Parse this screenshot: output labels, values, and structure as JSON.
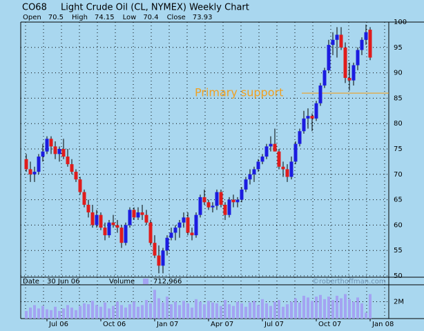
{
  "chart_data": {
    "type": "candlestick",
    "symbol": "CO68",
    "title": "Light Crude Oil (CL, NYMEX) Weekly Chart",
    "quote": [
      {
        "label": "Open",
        "value": 70.5
      },
      {
        "label": "High",
        "value": 74.15
      },
      {
        "label": "Low",
        "value": 70.4
      },
      {
        "label": "Close",
        "value": 73.93
      }
    ],
    "date_label": "Date",
    "date": "30 Jun 06",
    "volume_label": "Volume",
    "volume_value": {
      "value": 712966,
      "label": "712,966"
    },
    "watermark": "©roberthoffman.com",
    "up_color": "#1c1ce0",
    "down_color": "#e01c1c",
    "volume_color": "#a3a3f2",
    "grid": true,
    "categories": [
      null,
      null,
      null,
      null,
      null,
      "Jul 06",
      null,
      null,
      null,
      null,
      null,
      null,
      null,
      null,
      null,
      null,
      null,
      null,
      "Oct 06",
      null,
      null,
      null,
      null,
      null,
      null,
      null,
      null,
      null,
      null,
      null,
      null,
      "Jan 07",
      null,
      null,
      null,
      null,
      null,
      null,
      null,
      null,
      null,
      null,
      null,
      null,
      "Apr 07",
      null,
      null,
      null,
      null,
      null,
      null,
      null,
      null,
      null,
      null,
      null,
      null,
      "Jul 07",
      null,
      null,
      null,
      null,
      null,
      null,
      null,
      null,
      null,
      null,
      null,
      null,
      "Oct 07",
      null,
      null,
      null,
      null,
      null,
      null,
      null,
      null,
      null,
      null,
      null,
      null,
      "Jan 08"
    ],
    "ohlc": [
      [
        73,
        74,
        70.5,
        71
      ],
      [
        71,
        72.5,
        68.5,
        70
      ],
      [
        70,
        71.5,
        68.5,
        70.5
      ],
      [
        70.5,
        74,
        70,
        73.5
      ],
      [
        73.5,
        76,
        72.5,
        74.5
      ],
      [
        74.5,
        77.5,
        74,
        77
      ],
      [
        77,
        77.5,
        74,
        75.5
      ],
      [
        75.5,
        76.5,
        73,
        74
      ],
      [
        74,
        75.5,
        72.5,
        75
      ],
      [
        75,
        77,
        73,
        73.5
      ],
      [
        73.5,
        75,
        71.5,
        72
      ],
      [
        72,
        73,
        70,
        70.5
      ],
      [
        70.5,
        71,
        68.5,
        69
      ],
      [
        69,
        69.5,
        66,
        66.5
      ],
      [
        66.5,
        67,
        63.5,
        64
      ],
      [
        64,
        65,
        61.5,
        62.5
      ],
      [
        62.5,
        64,
        59.5,
        60
      ],
      [
        60,
        63,
        59.5,
        62
      ],
      [
        62,
        62.5,
        59,
        59.5
      ],
      [
        59.5,
        60.5,
        57,
        58
      ],
      [
        58,
        61,
        57.5,
        60.5
      ],
      [
        60.5,
        62,
        59.5,
        60
      ],
      [
        60,
        61,
        58.5,
        59.5
      ],
      [
        59.5,
        60,
        55.5,
        56.5
      ],
      [
        56.5,
        60.5,
        56,
        60
      ],
      [
        60,
        63.5,
        59.5,
        63
      ],
      [
        63,
        63.5,
        61,
        61.5
      ],
      [
        61.5,
        63.5,
        61,
        62.5
      ],
      [
        62.5,
        64,
        61,
        62
      ],
      [
        62,
        63,
        60,
        60.5
      ],
      [
        60.5,
        61,
        56,
        56.5
      ],
      [
        56.5,
        58,
        53.5,
        54
      ],
      [
        54,
        56,
        50.5,
        52
      ],
      [
        52,
        55.5,
        50.5,
        55
      ],
      [
        55,
        58,
        54,
        57.5
      ],
      [
        57.5,
        59.5,
        57,
        58.5
      ],
      [
        58.5,
        60,
        57,
        59.5
      ],
      [
        59.5,
        61,
        57.5,
        60.5
      ],
      [
        60.5,
        62.5,
        59.5,
        61.5
      ],
      [
        61.5,
        62.5,
        58,
        58.5
      ],
      [
        58.5,
        59.5,
        57,
        58
      ],
      [
        58,
        62.5,
        57.5,
        62
      ],
      [
        62,
        66,
        61.5,
        65.5
      ],
      [
        65.5,
        67,
        64,
        64.5
      ],
      [
        64.5,
        65,
        63,
        63.5
      ],
      [
        63.5,
        64.5,
        62.5,
        63.8
      ],
      [
        63.8,
        67,
        63,
        66.5
      ],
      [
        66.5,
        67,
        63.5,
        64
      ],
      [
        64,
        64.5,
        61,
        62
      ],
      [
        62,
        65.5,
        61.5,
        65
      ],
      [
        65,
        66,
        63.5,
        64.5
      ],
      [
        64.5,
        65.5,
        63.5,
        65
      ],
      [
        65,
        67.5,
        64.5,
        67
      ],
      [
        67,
        69.5,
        66.5,
        69
      ],
      [
        69,
        71,
        68,
        70
      ],
      [
        70,
        71.5,
        68.5,
        71
      ],
      [
        71,
        73,
        70.5,
        72.5
      ],
      [
        72.5,
        74,
        72,
        73.5
      ],
      [
        73.5,
        76,
        73,
        75.5
      ],
      [
        75.5,
        77.5,
        74.5,
        76
      ],
      [
        76,
        79,
        74.5,
        74.5
      ],
      [
        74.5,
        75,
        71,
        71.5
      ],
      [
        71.5,
        72.5,
        69.5,
        71
      ],
      [
        71,
        72,
        68.5,
        69.5
      ],
      [
        69.5,
        73.5,
        69,
        72.5
      ],
      [
        72.5,
        76.5,
        72,
        76
      ],
      [
        76,
        79,
        75.5,
        78.5
      ],
      [
        78.5,
        82.5,
        78,
        81
      ],
      [
        81,
        83,
        79,
        81.5
      ],
      [
        81.5,
        82,
        78.5,
        81
      ],
      [
        81,
        84.5,
        80.5,
        84
      ],
      [
        84,
        88,
        83.5,
        87.5
      ],
      [
        87.5,
        91,
        87,
        90.5
      ],
      [
        90.5,
        96.5,
        90,
        95.5
      ],
      [
        95.5,
        98,
        93.5,
        96.5
      ],
      [
        96.5,
        99,
        93,
        97.5
      ],
      [
        97.5,
        99,
        94.5,
        95
      ],
      [
        95,
        96,
        88,
        89
      ],
      [
        89,
        92,
        86.5,
        88.5
      ],
      [
        88.5,
        92,
        87.5,
        91.5
      ],
      [
        91.5,
        95,
        90.5,
        94.5
      ],
      [
        94.5,
        97,
        93.5,
        96.5
      ],
      [
        96.5,
        99.5,
        95.5,
        98
      ],
      [
        98.5,
        99,
        92.5,
        93
      ]
    ],
    "volume": [
      900000,
      1300000,
      1600000,
      1200000,
      1500000,
      1100000,
      1000000,
      1400000,
      900000,
      1200000,
      1600000,
      1300000,
      1000000,
      1500000,
      1800000,
      1700000,
      2100000,
      1600000,
      1400000,
      1900000,
      1200000,
      1500000,
      2000000,
      1600000,
      1300000,
      1700000,
      2000000,
      1400000,
      1600000,
      2200000,
      1800000,
      3400000,
      2400000,
      1900000,
      2600000,
      1700000,
      2000000,
      1600000,
      2100000,
      1800000,
      1300000,
      2300000,
      2000000,
      1700000,
      2100000,
      1900000,
      1800000,
      1500000,
      2200000,
      1700000,
      1500000,
      2000000,
      1800000,
      1400000,
      1900000,
      2100000,
      1600000,
      2300000,
      1800000,
      1500000,
      2000000,
      2200000,
      1400000,
      1700000,
      2000000,
      2400000,
      1900000,
      2700000,
      2500000,
      2100000,
      2600000,
      2800000,
      2300000,
      2600000,
      2200000,
      2700000,
      2400000,
      2900000,
      2300000,
      2000000,
      2500000,
      1800000,
      700000,
      2900000
    ],
    "ylim": [
      50,
      100
    ],
    "yticks": [
      50,
      55,
      60,
      65,
      70,
      75,
      80,
      85,
      90,
      95,
      100
    ],
    "vlim": [
      0,
      4000000
    ],
    "vticks": [
      {
        "value": 2000000,
        "label": "2M"
      }
    ],
    "support": {
      "label": "Primary support",
      "value": 86,
      "color": "#f0a020"
    }
  }
}
